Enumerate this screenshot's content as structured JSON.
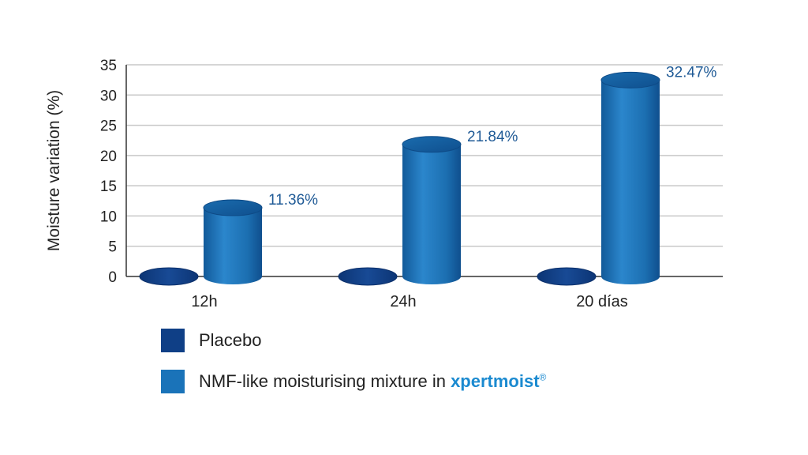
{
  "chart_data": {
    "type": "bar",
    "style": "3d-cylinder",
    "categories": [
      "12h",
      "24h",
      "20 días"
    ],
    "series": [
      {
        "name": "Placebo",
        "values": [
          0,
          0,
          0
        ],
        "color": "#0f3f86"
      },
      {
        "name": "NMF-like moisturising mixture in xpertmoist®",
        "values": [
          11.36,
          21.84,
          32.47
        ],
        "color": "#1a73b9"
      }
    ],
    "data_labels": [
      "11.36%",
      "21.84%",
      "32.47%"
    ],
    "ylabel": "Moisture variation (%)",
    "ylim": [
      0,
      35
    ],
    "yticks": [
      0,
      5,
      10,
      15,
      20,
      25,
      30,
      35
    ],
    "grid": true,
    "legend_position": "bottom-left"
  },
  "legend": {
    "placebo_label": "Placebo",
    "nmf_label": "NMF-like moisturising mixture in ",
    "brand": "xpertmoist",
    "brand_mark": "®",
    "placebo_color": "#0f3f86",
    "nmf_color": "#1a73b9"
  }
}
